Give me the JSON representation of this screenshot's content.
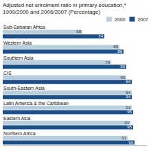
{
  "chart_data": {
    "type": "bar",
    "orientation": "horizontal",
    "title": "Adjusted net enrolment ratio in primary education,* 1999/2000 and 2006/2007 (Percentage)",
    "categories": [
      "Sub-Saharan Africa",
      "Western Asia",
      "Southern Asia",
      "CIS",
      "South-Eastern Asia",
      "Latin America & the Caribbean",
      "Eastern Asia",
      "Northern Africa"
    ],
    "series": [
      {
        "name": "2000",
        "color": "#b8cfe0",
        "values": [
          58,
          85,
          79,
          90,
          94,
          94,
          93,
          91
        ]
      },
      {
        "name": "2007",
        "color": "#1a4f8a",
        "values": [
          74,
          88,
          90,
          94,
          94,
          95,
          95,
          96
        ]
      }
    ],
    "xlim": [
      0,
      105
    ],
    "data_labels": true,
    "tick_labels": false,
    "grid": false,
    "legend": "upper right"
  }
}
